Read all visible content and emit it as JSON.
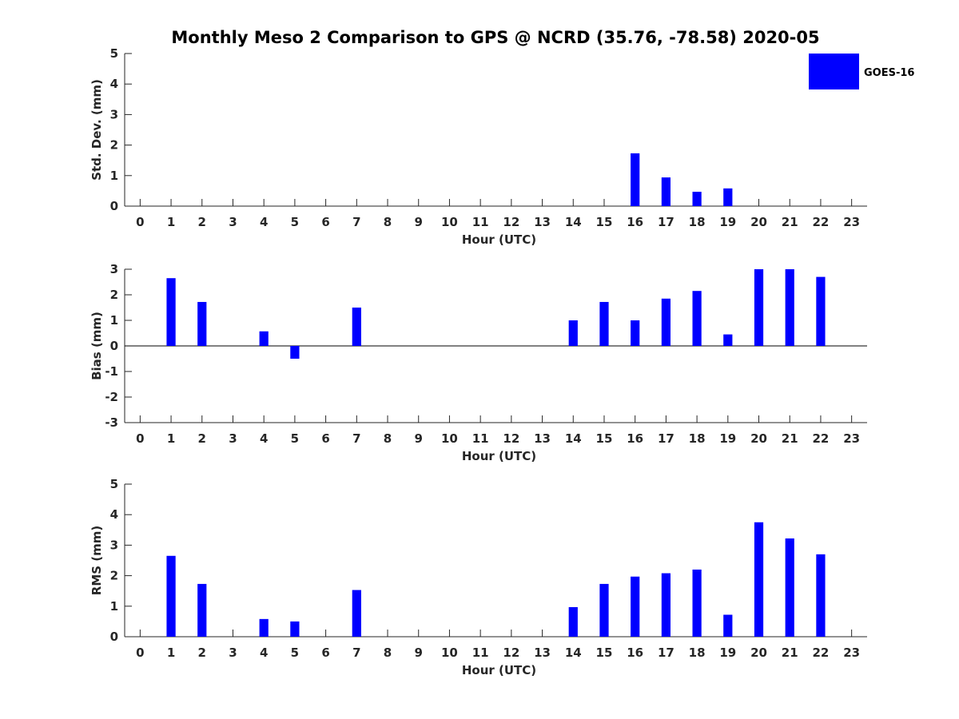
{
  "figure": {
    "title": "Monthly Meso 2 Comparison to GPS @ NCRD (35.76, -78.58) 2020-05",
    "legend": {
      "label": "GOES-16",
      "color": "#0000ff",
      "placement": "top-right"
    }
  },
  "chart_data": [
    {
      "type": "bar",
      "xlabel": "Hour (UTC)",
      "ylabel": "Std. Dev. (mm)",
      "xlim": [
        -0.5,
        23.5
      ],
      "ylim": [
        0,
        5
      ],
      "yticks": [
        0,
        1,
        2,
        3,
        4,
        5
      ],
      "grid": false,
      "categories": [
        "0",
        "1",
        "2",
        "3",
        "4",
        "5",
        "6",
        "7",
        "8",
        "9",
        "10",
        "11",
        "12",
        "13",
        "14",
        "15",
        "16",
        "17",
        "18",
        "19",
        "20",
        "21",
        "22",
        "23"
      ],
      "series": [
        {
          "name": "GOES-16",
          "color": "#0000ff",
          "values": [
            null,
            null,
            null,
            null,
            null,
            null,
            null,
            null,
            null,
            null,
            null,
            null,
            null,
            null,
            null,
            null,
            1.73,
            0.94,
            0.47,
            0.58,
            null,
            null,
            null,
            null
          ]
        }
      ]
    },
    {
      "type": "bar",
      "xlabel": "Hour (UTC)",
      "ylabel": "Bias (mm)",
      "xlim": [
        -0.5,
        23.5
      ],
      "ylim": [
        -3,
        3
      ],
      "yticks": [
        -3,
        -2,
        -1,
        0,
        1,
        2,
        3
      ],
      "grid": false,
      "zero_line": true,
      "categories": [
        "0",
        "1",
        "2",
        "3",
        "4",
        "5",
        "6",
        "7",
        "8",
        "9",
        "10",
        "11",
        "12",
        "13",
        "14",
        "15",
        "16",
        "17",
        "18",
        "19",
        "20",
        "21",
        "22",
        "23"
      ],
      "series": [
        {
          "name": "GOES-16",
          "color": "#0000ff",
          "values": [
            null,
            2.65,
            1.72,
            null,
            0.57,
            -0.5,
            null,
            1.5,
            null,
            null,
            null,
            null,
            null,
            null,
            1.0,
            1.72,
            1.0,
            1.85,
            2.15,
            0.45,
            3.0,
            3.0,
            2.7,
            null
          ]
        }
      ]
    },
    {
      "type": "bar",
      "xlabel": "Hour (UTC)",
      "ylabel": "RMS (mm)",
      "xlim": [
        -0.5,
        23.5
      ],
      "ylim": [
        0,
        5
      ],
      "yticks": [
        0,
        1,
        2,
        3,
        4,
        5
      ],
      "grid": false,
      "categories": [
        "0",
        "1",
        "2",
        "3",
        "4",
        "5",
        "6",
        "7",
        "8",
        "9",
        "10",
        "11",
        "12",
        "13",
        "14",
        "15",
        "16",
        "17",
        "18",
        "19",
        "20",
        "21",
        "22",
        "23"
      ],
      "series": [
        {
          "name": "GOES-16",
          "color": "#0000ff",
          "values": [
            null,
            2.65,
            1.73,
            null,
            0.58,
            0.5,
            null,
            1.53,
            null,
            null,
            null,
            null,
            null,
            null,
            0.97,
            1.73,
            1.97,
            2.08,
            2.2,
            0.72,
            3.75,
            3.22,
            2.7,
            null
          ]
        }
      ]
    }
  ]
}
